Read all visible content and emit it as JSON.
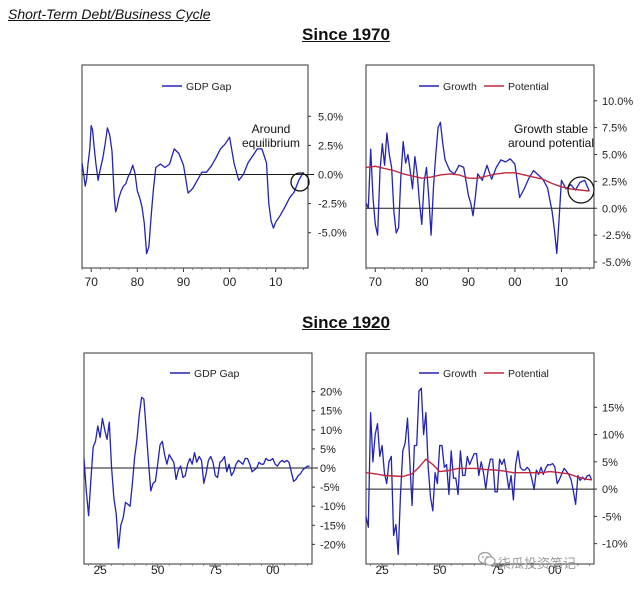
{
  "page": {
    "heading": "Short-Term Debt/Business Cycle",
    "section_1970": "Since 1970",
    "section_1920": "Since 1920",
    "watermark": "柒瓜投资笔记"
  },
  "colors": {
    "gap": "#2323b4",
    "growth": "#2323b4",
    "potential": "#c0283c"
  },
  "chart_data": [
    {
      "type": "line",
      "id": "gap1970",
      "legend": [
        "GDP Gap"
      ],
      "annotation": "Around equilibrium",
      "annotation_lines": [
        "Around",
        "equilibrium"
      ],
      "xlim": [
        1968,
        2017
      ],
      "ylim": [
        -7,
        7
      ],
      "x_ticks": [
        1970,
        1980,
        1990,
        2000,
        2010
      ],
      "x_tick_labels": [
        "70",
        "80",
        "90",
        "00",
        "10"
      ],
      "y_ticks": [
        5,
        2.5,
        0,
        -2.5,
        -5
      ],
      "y_tick_labels": [
        "5.0%",
        "2.5%",
        "0.0%",
        "-2.5%",
        "-5.0%"
      ],
      "series": [
        {
          "name": "GDP Gap",
          "x": [
            1968,
            1968.3,
            1968.7,
            1969,
            1969.3,
            1969.7,
            1970,
            1970.3,
            1970.6,
            1971,
            1971.5,
            1972,
            1972.5,
            1973,
            1973.5,
            1974,
            1974.5,
            1975,
            1975.3,
            1975.6,
            1976,
            1976.5,
            1977,
            1977.5,
            1978,
            1978.5,
            1979,
            1979.5,
            1980,
            1980.5,
            1981,
            1981.5,
            1982,
            1982.5,
            1983,
            1983.5,
            1984,
            1985,
            1986,
            1987,
            1988,
            1989,
            1990,
            1991,
            1992,
            1993,
            1994,
            1995,
            1996,
            1997,
            1998,
            1999,
            2000,
            2001,
            2002,
            2003,
            2004,
            2005,
            2006,
            2007,
            2008,
            2008.5,
            2009,
            2009.5,
            2010,
            2011,
            2012,
            2013,
            2014,
            2015,
            2016
          ],
          "values": [
            1.0,
            0.2,
            -1.0,
            -0.4,
            0.9,
            2.2,
            4.2,
            3.8,
            2.5,
            1.0,
            -0.5,
            0.5,
            1.4,
            2.6,
            4.0,
            3.4,
            2.0,
            -2.0,
            -3.2,
            -2.8,
            -2.0,
            -1.4,
            -1.0,
            -0.8,
            -0.2,
            0.2,
            0.8,
            0.1,
            -1.4,
            -2.0,
            -2.8,
            -4.2,
            -6.8,
            -6.2,
            -3.5,
            -1.2,
            0.6,
            0.9,
            0.6,
            0.9,
            2.2,
            1.8,
            0.8,
            -1.6,
            -1.2,
            -0.5,
            0.2,
            0.2,
            0.7,
            1.4,
            2.2,
            2.6,
            3.2,
            0.9,
            -0.5,
            0.0,
            1.0,
            1.6,
            2.2,
            2.2,
            1.0,
            -2.5,
            -4.0,
            -4.6,
            -4.1,
            -3.5,
            -2.8,
            -2.0,
            -1.5,
            -0.5,
            0.2
          ]
        }
      ]
    },
    {
      "type": "line",
      "id": "growth1970",
      "legend": [
        "Growth",
        "Potential"
      ],
      "annotation": "Growth stable around potential",
      "annotation_lines": [
        "Growth stable",
        "around potential"
      ],
      "xlim": [
        1968,
        2017
      ],
      "ylim": [
        -5,
        11
      ],
      "x_ticks": [
        1970,
        1980,
        1990,
        2000,
        2010
      ],
      "x_tick_labels": [
        "70",
        "80",
        "90",
        "00",
        "10"
      ],
      "y_ticks": [
        10,
        7.5,
        5,
        2.5,
        0,
        -2.5,
        -5
      ],
      "y_tick_labels": [
        "10.0%",
        "7.5%",
        "5.0%",
        "2.5%",
        "0.0%",
        "-2.5%",
        "-5.0%"
      ],
      "series": [
        {
          "name": "Growth",
          "x": [
            1968,
            1968.5,
            1969,
            1969.5,
            1970,
            1970.5,
            1971,
            1971.5,
            1972,
            1972.5,
            1973,
            1973.5,
            1974,
            1974.5,
            1975,
            1975.5,
            1976,
            1976.5,
            1977,
            1977.5,
            1978,
            1978.5,
            1979,
            1979.5,
            1980,
            1980.5,
            1981,
            1981.5,
            1982,
            1982.5,
            1983,
            1983.5,
            1984,
            1984.5,
            1985,
            1986,
            1987,
            1988,
            1989,
            1990,
            1990.5,
            1991,
            1991.5,
            1992,
            1993,
            1994,
            1995,
            1996,
            1997,
            1998,
            1999,
            2000,
            2001,
            2002,
            2003,
            2004,
            2005,
            2006,
            2007,
            2008,
            2008.5,
            2009,
            2009.5,
            2010,
            2011,
            2012,
            2013,
            2014,
            2015,
            2016
          ],
          "values": [
            0.5,
            0.0,
            5.5,
            1.0,
            -1.5,
            -2.5,
            3.5,
            6.0,
            4.0,
            7.0,
            5.0,
            3.8,
            -0.3,
            -2.3,
            -1.8,
            3.0,
            6.2,
            4.2,
            5.0,
            3.5,
            1.8,
            4.8,
            3.2,
            0.5,
            -1.5,
            2.5,
            3.8,
            1.0,
            -2.5,
            2.0,
            5.0,
            7.5,
            8.0,
            6.0,
            4.5,
            3.5,
            3.2,
            4.0,
            3.8,
            1.2,
            0.5,
            -0.7,
            1.0,
            3.2,
            2.6,
            4.0,
            2.7,
            3.8,
            4.5,
            4.3,
            4.6,
            4.1,
            1.0,
            1.8,
            2.8,
            3.5,
            3.1,
            2.7,
            1.9,
            -0.3,
            -2.0,
            -4.2,
            -1.0,
            2.6,
            1.8,
            2.2,
            1.7,
            2.4,
            2.6,
            1.6
          ]
        },
        {
          "name": "Potential",
          "x": [
            1968,
            1970,
            1972,
            1974,
            1976,
            1978,
            1980,
            1982,
            1984,
            1986,
            1988,
            1990,
            1992,
            1994,
            1996,
            1998,
            2000,
            2002,
            2004,
            2006,
            2008,
            2010,
            2012,
            2014,
            2016
          ],
          "values": [
            3.8,
            3.9,
            3.7,
            3.5,
            3.2,
            3.0,
            2.8,
            2.9,
            3.1,
            3.2,
            3.1,
            2.8,
            2.8,
            3.0,
            3.2,
            3.3,
            3.3,
            3.1,
            2.9,
            2.7,
            2.3,
            2.0,
            1.8,
            1.7,
            1.6
          ]
        }
      ]
    },
    {
      "type": "line",
      "id": "gap1920",
      "legend": [
        "GDP Gap"
      ],
      "xlim": [
        1918,
        2017
      ],
      "ylim": [
        -22,
        22
      ],
      "x_ticks": [
        1925,
        1950,
        1975,
        2000
      ],
      "x_tick_labels": [
        "25",
        "50",
        "75",
        "00"
      ],
      "y_ticks": [
        20,
        15,
        10,
        5,
        0,
        -5,
        -10,
        -15,
        -20
      ],
      "y_tick_labels": [
        "20%",
        "15%",
        "10%",
        "5%",
        "0%",
        "-5%",
        "-10%",
        "-15%",
        "-20%"
      ],
      "series": [
        {
          "name": "GDP Gap",
          "x": [
            1918,
            1919,
            1920,
            1921,
            1922,
            1923,
            1924,
            1925,
            1926,
            1927,
            1928,
            1929,
            1930,
            1931,
            1932,
            1933,
            1934,
            1935,
            1936,
            1937,
            1938,
            1939,
            1940,
            1941,
            1942,
            1943,
            1944,
            1945,
            1946,
            1947,
            1948,
            1949,
            1950,
            1951,
            1952,
            1953,
            1954,
            1955,
            1956,
            1957,
            1958,
            1959,
            1960,
            1961,
            1962,
            1963,
            1964,
            1965,
            1966,
            1967,
            1968,
            1969,
            1970,
            1971,
            1972,
            1973,
            1974,
            1975,
            1976,
            1977,
            1978,
            1979,
            1980,
            1981,
            1982,
            1983,
            1984,
            1985,
            1986,
            1987,
            1988,
            1989,
            1990,
            1991,
            1992,
            1993,
            1994,
            1995,
            1996,
            1997,
            1998,
            1999,
            2000,
            2001,
            2002,
            2003,
            2004,
            2005,
            2006,
            2007,
            2008,
            2009,
            2010,
            2011,
            2012,
            2013,
            2014,
            2015,
            2016
          ],
          "values": [
            2.5,
            -6.0,
            -12.5,
            -3.0,
            5.5,
            7.0,
            11.0,
            8.0,
            13.0,
            10.0,
            7.5,
            12.0,
            0.0,
            -8.0,
            -12.0,
            -21.0,
            -15.0,
            -13.0,
            -9.0,
            -9.5,
            -10.0,
            -4.0,
            3.0,
            7.5,
            14.0,
            18.5,
            18.0,
            10.0,
            1.5,
            -6.0,
            -4.0,
            -3.5,
            1.0,
            6.0,
            7.0,
            3.5,
            1.0,
            3.5,
            2.5,
            1.5,
            -3.0,
            -0.5,
            0.5,
            -2.5,
            -2.0,
            1.0,
            2.5,
            1.0,
            4.0,
            1.5,
            3.0,
            2.0,
            -4.0,
            -1.5,
            2.0,
            3.0,
            1.5,
            -2.0,
            -2.5,
            1.5,
            2.0,
            3.0,
            -1.0,
            1.0,
            -2.0,
            -1.0,
            1.0,
            2.0,
            1.5,
            1.0,
            2.5,
            2.5,
            1.0,
            -1.0,
            -0.5,
            0.0,
            1.5,
            1.0,
            1.0,
            2.5,
            2.0,
            2.0,
            2.5,
            1.0,
            0.5,
            1.5,
            2.0,
            1.5,
            2.0,
            1.5,
            -1.0,
            -3.5,
            -3.0,
            -2.0,
            -1.5,
            -0.5,
            0.0,
            0.5,
            0.5
          ]
        }
      ]
    },
    {
      "type": "line",
      "id": "growth1920",
      "legend": [
        "Growth",
        "Potential"
      ],
      "xlim": [
        1918,
        2017
      ],
      "ylim": [
        -13,
        20
      ],
      "x_ticks": [
        1925,
        1950,
        1975,
        2000
      ],
      "x_tick_labels": [
        "25",
        "50",
        "75",
        "00"
      ],
      "y_ticks": [
        15,
        10,
        5,
        0,
        -5,
        -10
      ],
      "y_tick_labels": [
        "15%",
        "10%",
        "5%",
        "0%",
        "-5%",
        "-10%"
      ],
      "series": [
        {
          "name": "Growth",
          "x": [
            1918,
            1919,
            1920,
            1921,
            1922,
            1923,
            1924,
            1925,
            1926,
            1927,
            1928,
            1929,
            1930,
            1931,
            1932,
            1933,
            1934,
            1935,
            1936,
            1937,
            1938,
            1939,
            1940,
            1941,
            1942,
            1943,
            1944,
            1945,
            1946,
            1947,
            1948,
            1949,
            1950,
            1951,
            1952,
            1953,
            1954,
            1955,
            1956,
            1957,
            1958,
            1959,
            1960,
            1961,
            1962,
            1963,
            1964,
            1965,
            1966,
            1967,
            1968,
            1969,
            1970,
            1971,
            1972,
            1973,
            1974,
            1975,
            1976,
            1977,
            1978,
            1979,
            1980,
            1981,
            1982,
            1983,
            1984,
            1985,
            1986,
            1987,
            1988,
            1989,
            1990,
            1991,
            1992,
            1993,
            1994,
            1995,
            1996,
            1997,
            1998,
            1999,
            2000,
            2001,
            2002,
            2003,
            2004,
            2005,
            2006,
            2007,
            2008,
            2009,
            2010,
            2011,
            2012,
            2013,
            2014,
            2015,
            2016
          ],
          "values": [
            -5.0,
            -7.0,
            14.0,
            5.0,
            10.0,
            12.0,
            6.0,
            8.0,
            3.0,
            1.0,
            5.0,
            6.0,
            -8.5,
            -6.5,
            -12.0,
            -1.0,
            7.0,
            8.5,
            13.0,
            5.0,
            -3.0,
            8.0,
            8.0,
            18.0,
            18.5,
            10.0,
            14.0,
            4.0,
            -1.5,
            -4.0,
            3.0,
            1.0,
            8.0,
            8.0,
            4.0,
            4.5,
            -1.0,
            7.0,
            2.0,
            2.0,
            -1.0,
            7.0,
            2.5,
            2.5,
            6.0,
            4.5,
            5.5,
            6.5,
            6.5,
            2.5,
            5.0,
            3.0,
            0.0,
            3.5,
            5.5,
            5.5,
            -0.5,
            -0.5,
            5.5,
            4.5,
            5.5,
            3.0,
            0.0,
            2.5,
            -2.0,
            4.5,
            7.0,
            4.0,
            3.5,
            3.5,
            4.0,
            3.5,
            1.9,
            -0.1,
            3.5,
            2.7,
            4.0,
            2.7,
            3.8,
            4.5,
            4.4,
            4.7,
            4.1,
            1.0,
            1.8,
            2.8,
            3.8,
            3.3,
            2.7,
            1.8,
            -0.3,
            -2.8,
            2.5,
            1.6,
            2.2,
            1.7,
            2.4,
            2.6,
            1.6
          ]
        },
        {
          "name": "Potential",
          "x": [
            1918,
            1922,
            1926,
            1930,
            1934,
            1938,
            1941,
            1944,
            1947,
            1950,
            1954,
            1958,
            1962,
            1966,
            1970,
            1974,
            1978,
            1982,
            1986,
            1990,
            1994,
            1998,
            2002,
            2006,
            2010,
            2014,
            2016
          ],
          "values": [
            3.0,
            2.8,
            2.5,
            2.4,
            2.3,
            2.8,
            4.0,
            5.5,
            4.5,
            3.2,
            3.4,
            3.8,
            3.8,
            3.8,
            3.6,
            3.5,
            3.3,
            3.0,
            3.0,
            3.0,
            3.0,
            3.2,
            3.0,
            2.8,
            2.2,
            1.8,
            1.7
          ]
        }
      ]
    }
  ]
}
